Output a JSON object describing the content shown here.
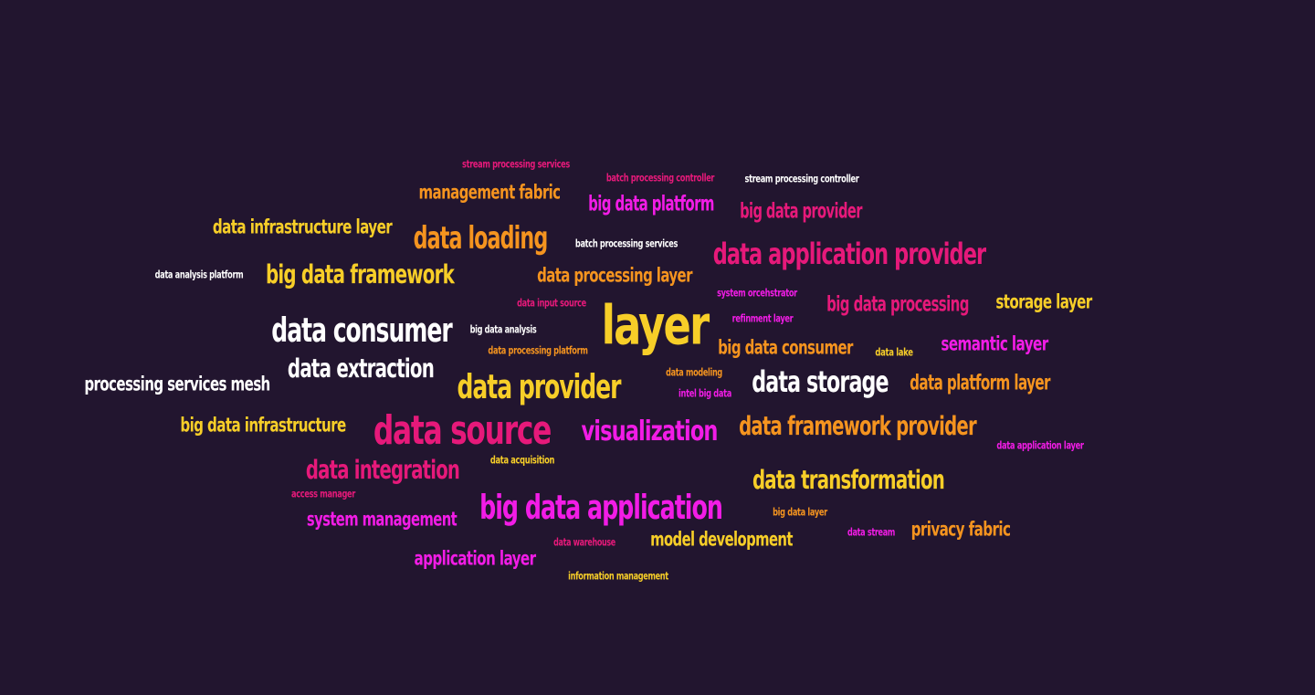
{
  "colors": {
    "background": "#22152f",
    "magenta": "#f21ce6",
    "pink": "#e6197a",
    "orange": "#f5941f",
    "yellow": "#f7ce28",
    "white": "#ffffff"
  },
  "words": [
    {
      "id": "stream-processing-services",
      "text": "stream processing services",
      "color": "pink"
    },
    {
      "id": "batch-processing-controller",
      "text": "batch processing controller",
      "color": "pink"
    },
    {
      "id": "stream-processing-controller",
      "text": "stream processing controller",
      "color": "white"
    },
    {
      "id": "management-fabric",
      "text": "management fabric",
      "color": "orange"
    },
    {
      "id": "big-data-platform",
      "text": "big data platform",
      "color": "magenta"
    },
    {
      "id": "big-data-provider",
      "text": "big data provider",
      "color": "pink"
    },
    {
      "id": "data-infrastructure-layer",
      "text": "data infrastructure layer",
      "color": "yellow"
    },
    {
      "id": "data-loading",
      "text": "data loading",
      "color": "orange"
    },
    {
      "id": "batch-processing-services",
      "text": "batch processing services",
      "color": "white"
    },
    {
      "id": "data-application-provider",
      "text": "data application provider",
      "color": "pink"
    },
    {
      "id": "data-analysis-platform",
      "text": "data analysis platform",
      "color": "white"
    },
    {
      "id": "big-data-framework",
      "text": "big data framework",
      "color": "yellow"
    },
    {
      "id": "data-processing-layer",
      "text": "data processing layer",
      "color": "orange"
    },
    {
      "id": "data-input-source",
      "text": "data input source",
      "color": "pink"
    },
    {
      "id": "system-orcehstrator",
      "text": "system orcehstrator",
      "color": "magenta"
    },
    {
      "id": "big-data-processing",
      "text": "big data processing",
      "color": "pink"
    },
    {
      "id": "storage-layer",
      "text": "storage layer",
      "color": "yellow"
    },
    {
      "id": "layer",
      "text": "layer",
      "color": "yellow"
    },
    {
      "id": "data-consumer",
      "text": "data consumer",
      "color": "white"
    },
    {
      "id": "big-data-analysis",
      "text": "big data analysis",
      "color": "white"
    },
    {
      "id": "refinment-layer",
      "text": "refinment layer",
      "color": "magenta"
    },
    {
      "id": "data-processing-platform",
      "text": "data processing platform",
      "color": "orange"
    },
    {
      "id": "big-data-consumer",
      "text": "big data consumer",
      "color": "orange"
    },
    {
      "id": "data-lake",
      "text": "data lake",
      "color": "yellow"
    },
    {
      "id": "semantic-layer",
      "text": "semantic layer",
      "color": "magenta"
    },
    {
      "id": "data-extraction",
      "text": "data extraction",
      "color": "white"
    },
    {
      "id": "processing-services-mesh",
      "text": "processing services mesh",
      "color": "white"
    },
    {
      "id": "data-modeling",
      "text": "data modeling",
      "color": "orange"
    },
    {
      "id": "data-provider",
      "text": "data provider",
      "color": "yellow"
    },
    {
      "id": "data-storage",
      "text": "data storage",
      "color": "white"
    },
    {
      "id": "data-platform-layer",
      "text": "data platform layer",
      "color": "orange"
    },
    {
      "id": "intel-big-data",
      "text": "intel big data",
      "color": "magenta"
    },
    {
      "id": "big-data-infrastructure",
      "text": "big data infrastructure",
      "color": "yellow"
    },
    {
      "id": "data-source",
      "text": "data source",
      "color": "pink"
    },
    {
      "id": "visualization",
      "text": "visualization",
      "color": "magenta"
    },
    {
      "id": "data-framework-provider",
      "text": "data framework provider",
      "color": "orange"
    },
    {
      "id": "data-application-layer",
      "text": "data application layer",
      "color": "magenta"
    },
    {
      "id": "data-acquisition",
      "text": "data acquisition",
      "color": "yellow"
    },
    {
      "id": "data-integration",
      "text": "data integration",
      "color": "pink"
    },
    {
      "id": "data-transformation",
      "text": "data transformation",
      "color": "yellow"
    },
    {
      "id": "access-manager",
      "text": "access manager",
      "color": "pink"
    },
    {
      "id": "big-data-application",
      "text": "big data application",
      "color": "magenta"
    },
    {
      "id": "big-data-layer",
      "text": "big data layer",
      "color": "orange"
    },
    {
      "id": "system-management",
      "text": "system management",
      "color": "magenta"
    },
    {
      "id": "data-stream",
      "text": "data stream",
      "color": "magenta"
    },
    {
      "id": "privacy-fabric",
      "text": "privacy fabric",
      "color": "orange"
    },
    {
      "id": "data-warehouse",
      "text": "data warehouse",
      "color": "pink"
    },
    {
      "id": "model-development",
      "text": "model development",
      "color": "yellow"
    },
    {
      "id": "application-layer",
      "text": "application layer",
      "color": "magenta"
    },
    {
      "id": "information-management",
      "text": "information management",
      "color": "yellow"
    }
  ]
}
